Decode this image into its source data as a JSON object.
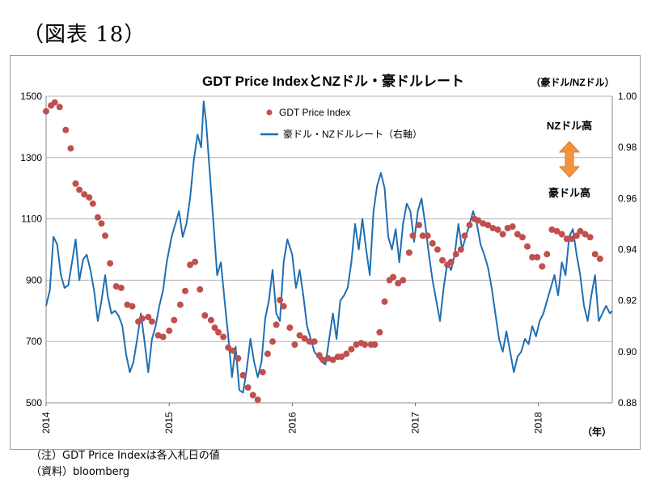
{
  "figure_label": "（図表 18）",
  "notes": {
    "note1": "（注）GDT Price Indexは各入札日の値",
    "note2": "（資料）bloomberg"
  },
  "colors": {
    "price": "#C0504D",
    "fx": "#1F6EB4",
    "arrow": "#F5923E",
    "grid": "#b3b3b3"
  },
  "chart_data": {
    "type": "line",
    "title": "GDT Price IndexとNZドル・豪ドルレート",
    "right_axis_unit": "（豪ドル/NZドル）",
    "x_unit": "（年）",
    "annotations": {
      "nz_high": "NZドル高",
      "au_high": "豪ドル高"
    },
    "left_axis": {
      "ylim": [
        500,
        1500
      ],
      "ticks": [
        "500",
        "700",
        "900",
        "1100",
        "1300",
        "1500"
      ]
    },
    "right_axis": {
      "ylim": [
        0.88,
        1.0
      ],
      "ticks": [
        "0.88",
        "0.90",
        "0.92",
        "0.94",
        "0.96",
        "0.98",
        "1.00"
      ]
    },
    "x_axis": {
      "xlim": [
        2014.0,
        2018.6
      ],
      "ticks": [
        "2014",
        "2015",
        "2016",
        "2017",
        "2018"
      ]
    },
    "grid": true,
    "legend_position": "top-center",
    "series": [
      {
        "name": "GDT Price Index",
        "kind": "scatter",
        "axis": "left",
        "points": [
          [
            2014.0,
            1451
          ],
          [
            2014.04,
            1470
          ],
          [
            2014.07,
            1480
          ],
          [
            2014.11,
            1465
          ],
          [
            2014.16,
            1390
          ],
          [
            2014.2,
            1330
          ],
          [
            2014.24,
            1215
          ],
          [
            2014.27,
            1195
          ],
          [
            2014.31,
            1180
          ],
          [
            2014.35,
            1170
          ],
          [
            2014.38,
            1150
          ],
          [
            2014.42,
            1105
          ],
          [
            2014.45,
            1085
          ],
          [
            2014.48,
            1045
          ],
          [
            2014.52,
            955
          ],
          [
            2014.57,
            880
          ],
          [
            2014.61,
            875
          ],
          [
            2014.66,
            820
          ],
          [
            2014.7,
            815
          ],
          [
            2014.75,
            765
          ],
          [
            2014.78,
            775
          ],
          [
            2014.83,
            780
          ],
          [
            2014.86,
            765
          ],
          [
            2014.91,
            720
          ],
          [
            2014.95,
            715
          ],
          [
            2015.0,
            735
          ],
          [
            2015.04,
            770
          ],
          [
            2015.09,
            820
          ],
          [
            2015.13,
            865
          ],
          [
            2015.17,
            950
          ],
          [
            2015.21,
            960
          ],
          [
            2015.25,
            870
          ],
          [
            2015.29,
            785
          ],
          [
            2015.34,
            770
          ],
          [
            2015.37,
            745
          ],
          [
            2015.4,
            730
          ],
          [
            2015.44,
            715
          ],
          [
            2015.48,
            680
          ],
          [
            2015.52,
            670
          ],
          [
            2015.56,
            645
          ],
          [
            2015.6,
            590
          ],
          [
            2015.64,
            550
          ],
          [
            2015.68,
            525
          ],
          [
            2015.72,
            510
          ],
          [
            2015.76,
            600
          ],
          [
            2015.8,
            660
          ],
          [
            2015.84,
            700
          ],
          [
            2015.87,
            755
          ],
          [
            2015.9,
            835
          ],
          [
            2015.93,
            815
          ],
          [
            2015.98,
            745
          ],
          [
            2016.02,
            690
          ],
          [
            2016.06,
            720
          ],
          [
            2016.1,
            710
          ],
          [
            2016.14,
            700
          ],
          [
            2016.18,
            700
          ],
          [
            2016.22,
            655
          ],
          [
            2016.25,
            640
          ],
          [
            2016.29,
            645
          ],
          [
            2016.33,
            640
          ],
          [
            2016.37,
            650
          ],
          [
            2016.4,
            650
          ],
          [
            2016.44,
            660
          ],
          [
            2016.48,
            675
          ],
          [
            2016.52,
            690
          ],
          [
            2016.56,
            695
          ],
          [
            2016.59,
            690
          ],
          [
            2016.64,
            690
          ],
          [
            2016.67,
            690
          ],
          [
            2016.71,
            730
          ],
          [
            2016.75,
            830
          ],
          [
            2016.79,
            900
          ],
          [
            2016.82,
            910
          ],
          [
            2016.86,
            890
          ],
          [
            2016.9,
            900
          ],
          [
            2016.95,
            990
          ],
          [
            2016.98,
            1045
          ],
          [
            2017.03,
            1080
          ],
          [
            2017.06,
            1045
          ],
          [
            2017.1,
            1045
          ],
          [
            2017.14,
            1020
          ],
          [
            2017.18,
            1000
          ],
          [
            2017.22,
            965
          ],
          [
            2017.26,
            950
          ],
          [
            2017.29,
            960
          ],
          [
            2017.33,
            985
          ],
          [
            2017.37,
            1000
          ],
          [
            2017.4,
            1045
          ],
          [
            2017.44,
            1080
          ],
          [
            2017.48,
            1100
          ],
          [
            2017.51,
            1095
          ],
          [
            2017.55,
            1085
          ],
          [
            2017.59,
            1080
          ],
          [
            2017.63,
            1070
          ],
          [
            2017.67,
            1065
          ],
          [
            2017.71,
            1050
          ],
          [
            2017.75,
            1070
          ],
          [
            2017.79,
            1075
          ],
          [
            2017.83,
            1050
          ],
          [
            2017.87,
            1040
          ],
          [
            2017.91,
            1010
          ],
          [
            2017.95,
            975
          ],
          [
            2017.99,
            975
          ],
          [
            2018.03,
            945
          ],
          [
            2018.07,
            985
          ],
          [
            2018.11,
            1065
          ],
          [
            2018.15,
            1060
          ],
          [
            2018.19,
            1050
          ],
          [
            2018.23,
            1035
          ],
          [
            2018.27,
            1035
          ],
          [
            2018.31,
            1045
          ],
          [
            2018.34,
            1060
          ],
          [
            2018.38,
            1050
          ],
          [
            2018.42,
            1040
          ],
          [
            2018.46,
            985
          ],
          [
            2018.5,
            970
          ]
        ]
      },
      {
        "name": "豪ドル・NZドルレート（右軸）",
        "kind": "line",
        "axis": "right",
        "points": [
          [
            2014.0,
            0.918
          ],
          [
            2014.03,
            0.924
          ],
          [
            2014.06,
            0.945
          ],
          [
            2014.09,
            0.942
          ],
          [
            2014.12,
            0.93
          ],
          [
            2014.15,
            0.925
          ],
          [
            2014.18,
            0.926
          ],
          [
            2014.21,
            0.935
          ],
          [
            2014.24,
            0.944
          ],
          [
            2014.27,
            0.928
          ],
          [
            2014.3,
            0.936
          ],
          [
            2014.33,
            0.938
          ],
          [
            2014.36,
            0.932
          ],
          [
            2014.39,
            0.924
          ],
          [
            2014.42,
            0.912
          ],
          [
            2014.45,
            0.92
          ],
          [
            2014.48,
            0.93
          ],
          [
            2014.5,
            0.922
          ],
          [
            2014.53,
            0.915
          ],
          [
            2014.56,
            0.916
          ],
          [
            2014.59,
            0.914
          ],
          [
            2014.62,
            0.91
          ],
          [
            2014.65,
            0.899
          ],
          [
            2014.68,
            0.892
          ],
          [
            2014.71,
            0.896
          ],
          [
            2014.74,
            0.905
          ],
          [
            2014.77,
            0.915
          ],
          [
            2014.8,
            0.904
          ],
          [
            2014.83,
            0.892
          ],
          [
            2014.86,
            0.905
          ],
          [
            2014.89,
            0.91
          ],
          [
            2014.92,
            0.918
          ],
          [
            2014.95,
            0.924
          ],
          [
            2014.98,
            0.935
          ],
          [
            2015.02,
            0.945
          ],
          [
            2015.05,
            0.95
          ],
          [
            2015.08,
            0.955
          ],
          [
            2015.11,
            0.945
          ],
          [
            2015.14,
            0.95
          ],
          [
            2015.17,
            0.96
          ],
          [
            2015.2,
            0.975
          ],
          [
            2015.23,
            0.985
          ],
          [
            2015.26,
            0.98
          ],
          [
            2015.28,
            0.998
          ],
          [
            2015.3,
            0.99
          ],
          [
            2015.33,
            0.97
          ],
          [
            2015.36,
            0.95
          ],
          [
            2015.39,
            0.93
          ],
          [
            2015.42,
            0.935
          ],
          [
            2015.45,
            0.92
          ],
          [
            2015.48,
            0.906
          ],
          [
            2015.51,
            0.89
          ],
          [
            2015.54,
            0.902
          ],
          [
            2015.57,
            0.885
          ],
          [
            2015.6,
            0.884
          ],
          [
            2015.63,
            0.893
          ],
          [
            2015.66,
            0.905
          ],
          [
            2015.69,
            0.896
          ],
          [
            2015.72,
            0.89
          ],
          [
            2015.75,
            0.896
          ],
          [
            2015.78,
            0.913
          ],
          [
            2015.81,
            0.92
          ],
          [
            2015.84,
            0.932
          ],
          [
            2015.87,
            0.915
          ],
          [
            2015.9,
            0.912
          ],
          [
            2015.93,
            0.935
          ],
          [
            2015.96,
            0.944
          ],
          [
            2016.0,
            0.938
          ],
          [
            2016.03,
            0.925
          ],
          [
            2016.06,
            0.932
          ],
          [
            2016.09,
            0.922
          ],
          [
            2016.12,
            0.91
          ],
          [
            2016.15,
            0.905
          ],
          [
            2016.18,
            0.9
          ],
          [
            2016.21,
            0.898
          ],
          [
            2016.24,
            0.896
          ],
          [
            2016.27,
            0.895
          ],
          [
            2016.3,
            0.905
          ],
          [
            2016.33,
            0.915
          ],
          [
            2016.36,
            0.905
          ],
          [
            2016.39,
            0.92
          ],
          [
            2016.42,
            0.922
          ],
          [
            2016.45,
            0.925
          ],
          [
            2016.48,
            0.935
          ],
          [
            2016.51,
            0.95
          ],
          [
            2016.54,
            0.94
          ],
          [
            2016.57,
            0.952
          ],
          [
            2016.6,
            0.94
          ],
          [
            2016.63,
            0.93
          ],
          [
            2016.66,
            0.955
          ],
          [
            2016.69,
            0.965
          ],
          [
            2016.72,
            0.97
          ],
          [
            2016.75,
            0.964
          ],
          [
            2016.78,
            0.945
          ],
          [
            2016.81,
            0.94
          ],
          [
            2016.84,
            0.948
          ],
          [
            2016.87,
            0.935
          ],
          [
            2016.9,
            0.95
          ],
          [
            2016.93,
            0.958
          ],
          [
            2016.96,
            0.955
          ],
          [
            2016.99,
            0.943
          ],
          [
            2017.02,
            0.955
          ],
          [
            2017.05,
            0.96
          ],
          [
            2017.08,
            0.95
          ],
          [
            2017.11,
            0.938
          ],
          [
            2017.14,
            0.928
          ],
          [
            2017.17,
            0.92
          ],
          [
            2017.2,
            0.912
          ],
          [
            2017.23,
            0.925
          ],
          [
            2017.26,
            0.935
          ],
          [
            2017.29,
            0.932
          ],
          [
            2017.32,
            0.938
          ],
          [
            2017.35,
            0.95
          ],
          [
            2017.38,
            0.94
          ],
          [
            2017.41,
            0.945
          ],
          [
            2017.44,
            0.95
          ],
          [
            2017.47,
            0.955
          ],
          [
            2017.5,
            0.95
          ],
          [
            2017.53,
            0.942
          ],
          [
            2017.56,
            0.938
          ],
          [
            2017.59,
            0.933
          ],
          [
            2017.62,
            0.925
          ],
          [
            2017.65,
            0.915
          ],
          [
            2017.68,
            0.905
          ],
          [
            2017.71,
            0.9
          ],
          [
            2017.74,
            0.908
          ],
          [
            2017.77,
            0.9
          ],
          [
            2017.8,
            0.892
          ],
          [
            2017.83,
            0.898
          ],
          [
            2017.86,
            0.9
          ],
          [
            2017.89,
            0.905
          ],
          [
            2017.92,
            0.903
          ],
          [
            2017.95,
            0.91
          ],
          [
            2017.98,
            0.906
          ],
          [
            2018.01,
            0.912
          ],
          [
            2018.04,
            0.915
          ],
          [
            2018.07,
            0.92
          ],
          [
            2018.1,
            0.925
          ],
          [
            2018.13,
            0.93
          ],
          [
            2018.16,
            0.922
          ],
          [
            2018.19,
            0.935
          ],
          [
            2018.22,
            0.93
          ],
          [
            2018.25,
            0.945
          ],
          [
            2018.28,
            0.948
          ],
          [
            2018.31,
            0.938
          ],
          [
            2018.34,
            0.93
          ],
          [
            2018.37,
            0.918
          ],
          [
            2018.4,
            0.912
          ],
          [
            2018.43,
            0.922
          ],
          [
            2018.46,
            0.93
          ],
          [
            2018.49,
            0.912
          ],
          [
            2018.52,
            0.915
          ],
          [
            2018.55,
            0.918
          ],
          [
            2018.58,
            0.915
          ],
          [
            2018.6,
            0.916
          ]
        ]
      }
    ]
  }
}
